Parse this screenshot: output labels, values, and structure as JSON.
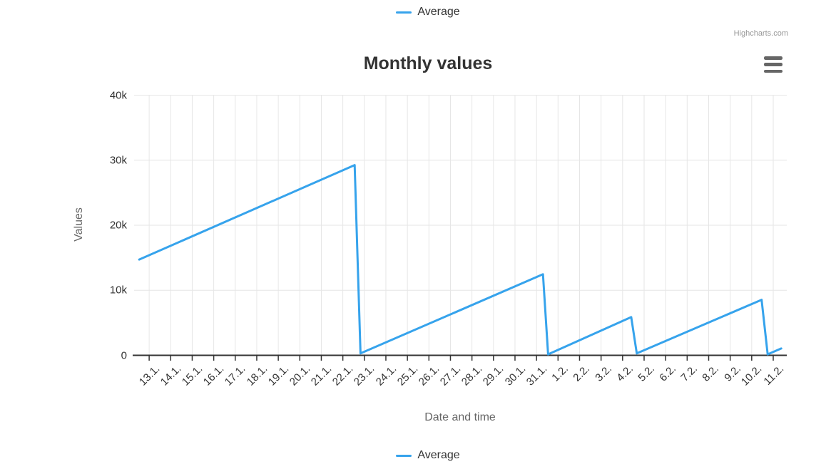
{
  "previous_chart": {
    "legend": {
      "label": "Average"
    },
    "credits": "Highcharts.com"
  },
  "chart": {
    "title": "Monthly values",
    "legend": {
      "label": "Average"
    },
    "export_menu_icon": "hamburger-icon"
  },
  "colors": {
    "series": "#36a3ec",
    "grid": "#e6e6e6",
    "axis_line": "#333333",
    "label_text": "#333333",
    "axis_title_text": "#666666",
    "credits_text": "#999999",
    "menu_icon": "#666666"
  },
  "chart_data": {
    "type": "line",
    "title": "Monthly values",
    "xlabel": "Date and time",
    "ylabel": "Values",
    "legend_entries": [
      "Average"
    ],
    "legend_position": "bottom",
    "grid": true,
    "ylim": [
      0,
      40000
    ],
    "y_ticks": [
      {
        "value": 0,
        "label": "0"
      },
      {
        "value": 10000,
        "label": "10k"
      },
      {
        "value": 20000,
        "label": "20k"
      },
      {
        "value": 30000,
        "label": "30k"
      },
      {
        "value": 40000,
        "label": "40k"
      }
    ],
    "x_tick_labels": [
      "13.1.",
      "14.1.",
      "15.1.",
      "16.1.",
      "17.1.",
      "18.1.",
      "19.1.",
      "20.1.",
      "21.1.",
      "22.1.",
      "23.1.",
      "24.1.",
      "25.1.",
      "26.1.",
      "27.1.",
      "28.1.",
      "29.1.",
      "30.1.",
      "31.1.",
      "1.2.",
      "2.2.",
      "3.2.",
      "4.2.",
      "5.2.",
      "6.2.",
      "7.2.",
      "8.2.",
      "9.2.",
      "10.2.",
      "11.2."
    ],
    "x_range_days": [
      -0.7,
      29.63
    ],
    "series": [
      {
        "name": "Average",
        "color": "#36a3ec",
        "points_day_value": [
          [
            -0.46,
            14730
          ],
          [
            9.55,
            29250
          ],
          [
            9.82,
            300
          ],
          [
            18.3,
            12460
          ],
          [
            18.54,
            150
          ],
          [
            22.4,
            5870
          ],
          [
            22.66,
            300
          ],
          [
            28.46,
            8540
          ],
          [
            28.74,
            150
          ],
          [
            29.37,
            1050
          ]
        ]
      }
    ]
  }
}
